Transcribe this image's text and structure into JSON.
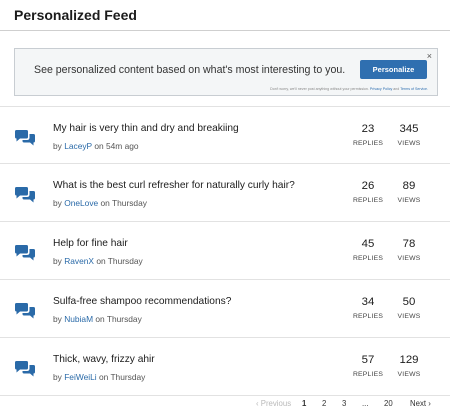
{
  "feed": {
    "title": "Personalized Feed"
  },
  "banner": {
    "text": "See personalized content based on what's most interesting to you.",
    "button_label": "Personalize",
    "close_glyph": "×",
    "disclaimer_prefix": "Don't worry, we'll never post anything without your permission.",
    "privacy_label": "Privacy Policy",
    "and_label": "and",
    "terms_label": "Terms of Service."
  },
  "topics": [
    {
      "title": "My hair is very thin and dry and breakiing",
      "by": "by",
      "author": "LaceyP",
      "when": "on 54m ago",
      "replies": "23",
      "views": "345",
      "replies_label": "REPLIES",
      "views_label": "VIEWS"
    },
    {
      "title": "What is the best curl refresher for naturally curly hair?",
      "by": "by",
      "author": "OneLove",
      "when": "on Thursday",
      "replies": "26",
      "views": "89",
      "replies_label": "REPLIES",
      "views_label": "VIEWS"
    },
    {
      "title": "Help for fine hair",
      "by": "by",
      "author": "RavenX",
      "when": "on Thursday",
      "replies": "45",
      "views": "78",
      "replies_label": "REPLIES",
      "views_label": "VIEWS"
    },
    {
      "title": "Sulfa-free shampoo recommendations?",
      "by": "by",
      "author": "NubiaM",
      "when": "on Thursday",
      "replies": "34",
      "views": "50",
      "replies_label": "REPLIES",
      "views_label": "VIEWS"
    },
    {
      "title": "Thick, wavy, frizzy ahir",
      "by": "by",
      "author": "FeiWeiLi",
      "when": "on Thursday",
      "replies": "57",
      "views": "129",
      "replies_label": "REPLIES",
      "views_label": "VIEWS"
    }
  ],
  "pagination": {
    "previous_label": "‹ Previous",
    "pages": [
      "1",
      "2",
      "3",
      "...",
      "20"
    ],
    "current_page": "1",
    "next_label": "Next ›"
  },
  "icons": {
    "topic_icon": "chat-bubbles-icon",
    "accent": "#2a6aa8"
  }
}
